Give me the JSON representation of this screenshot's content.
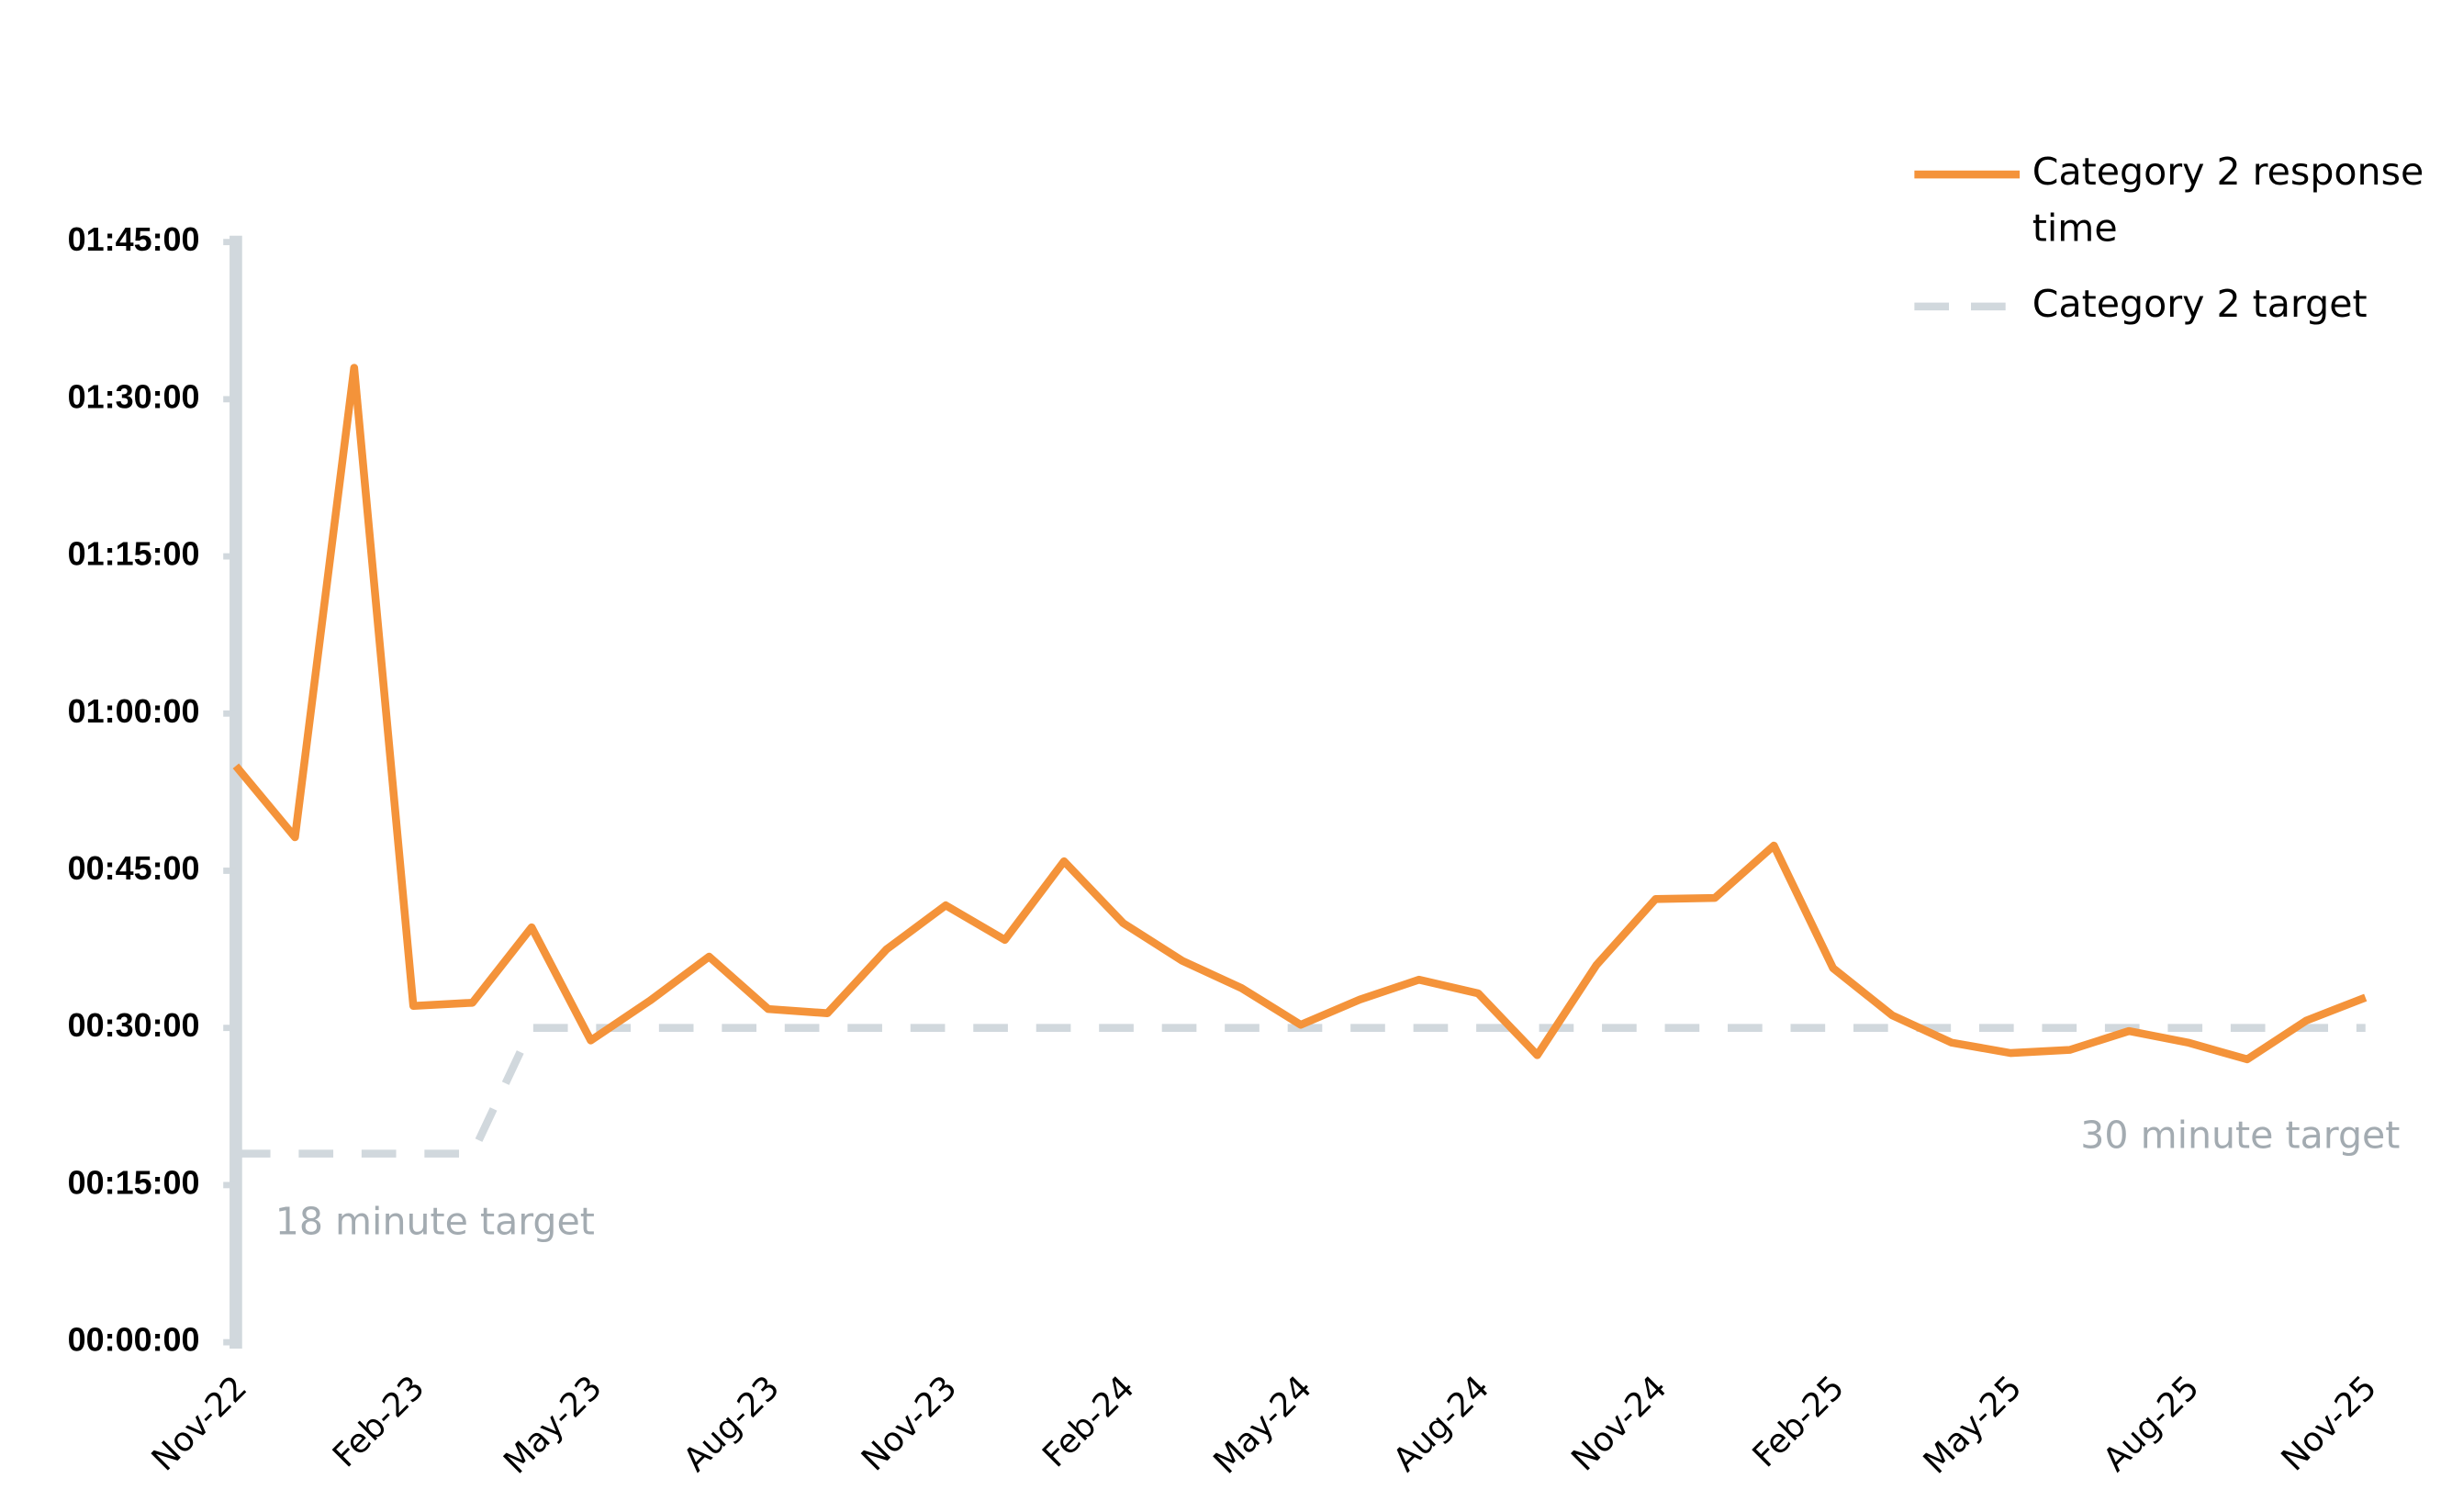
{
  "chart_data": {
    "type": "line",
    "categories": [
      "Nov-22",
      null,
      null,
      "Feb-23",
      null,
      null,
      "May-23",
      null,
      null,
      "Aug-23",
      null,
      null,
      "Nov-23",
      null,
      null,
      "Feb-24",
      null,
      null,
      "May-24",
      null,
      null,
      "Aug-24",
      null,
      null,
      "Nov-24",
      null,
      null,
      "Feb-25",
      null,
      null,
      "May-25",
      null,
      null,
      "Aug-25",
      null,
      null,
      "Nov-25"
    ],
    "series": [
      {
        "name": "Category 2 response time",
        "color": "#f4933a",
        "dashed": false,
        "values": [
          55,
          48.2,
          93,
          32.1,
          32.4,
          39.6,
          28.8,
          32.6,
          36.8,
          31.8,
          31.4,
          37.5,
          41.7,
          38.4,
          45.9,
          40.0,
          36.4,
          33.8,
          30.3,
          32.7,
          34.6,
          33.3,
          27.4,
          36.0,
          42.3,
          42.4,
          47.4,
          35.7,
          31.2,
          28.6,
          27.6,
          27.9,
          29.7,
          28.6,
          27.0,
          30.7,
          32.9
        ]
      },
      {
        "name": "Category 2 target",
        "color": "#d1d8dd",
        "dashed": true,
        "values": [
          18,
          18,
          18,
          18,
          18,
          30,
          30,
          30,
          30,
          30,
          30,
          30,
          30,
          30,
          30,
          30,
          30,
          30,
          30,
          30,
          30,
          30,
          30,
          30,
          30,
          30,
          30,
          30,
          30,
          30,
          30,
          30,
          30,
          30,
          30,
          30,
          30
        ]
      }
    ],
    "ylim": [
      0,
      105
    ],
    "yticks": [
      {
        "value": 0,
        "label": "00:00:00"
      },
      {
        "value": 15,
        "label": "00:15:00"
      },
      {
        "value": 30,
        "label": "00:30:00"
      },
      {
        "value": 45,
        "label": "00:45:00"
      },
      {
        "value": 60,
        "label": "01:00:00"
      },
      {
        "value": 75,
        "label": "01:15:00"
      },
      {
        "value": 90,
        "label": "01:30:00"
      },
      {
        "value": 105,
        "label": "01:45:00"
      }
    ],
    "annotations": [
      "18 minute target",
      "30 minute target"
    ],
    "legend": "top-right",
    "axis_color": "#d1d8dd"
  }
}
